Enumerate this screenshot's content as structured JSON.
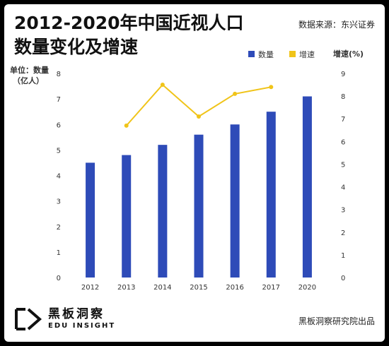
{
  "header": {
    "title_line1": "2012-2020年中国近视人口",
    "title_line2": "数量变化及增速",
    "source": "数据来源：东兴证券"
  },
  "footer": {
    "brand_cn": "黑板洞察",
    "brand_en": "EDU INSIGHT",
    "publisher": "黑板洞察研究院出品"
  },
  "colors": {
    "bar": "#2e4bb8",
    "line": "#f0c419",
    "text": "#333333"
  },
  "chart_data": {
    "type": "bar",
    "categories": [
      "2012",
      "2013",
      "2014",
      "2015",
      "2016",
      "2017",
      "2020"
    ],
    "series": [
      {
        "name": "数量",
        "type": "bar",
        "axis": "left",
        "values": [
          4.5,
          4.8,
          5.2,
          5.6,
          6.0,
          6.5,
          7.1
        ]
      },
      {
        "name": "增速",
        "type": "line",
        "axis": "right",
        "values": [
          null,
          6.7,
          8.5,
          7.1,
          8.1,
          8.4,
          null
        ]
      }
    ],
    "ylabel_left_line1": "单位：数量",
    "ylabel_left_line2": "（亿人）",
    "ylabel_right": "增速(%)",
    "ylim_left": [
      0,
      8
    ],
    "ylim_right": [
      0,
      9
    ],
    "yticks_left": [
      "0",
      "1",
      "2",
      "3",
      "4",
      "5",
      "6",
      "7",
      "8"
    ],
    "yticks_right": [
      "0",
      "1",
      "2",
      "3",
      "4",
      "5",
      "6",
      "7",
      "8",
      "9"
    ],
    "grid": false,
    "legend_position": "top-right"
  }
}
